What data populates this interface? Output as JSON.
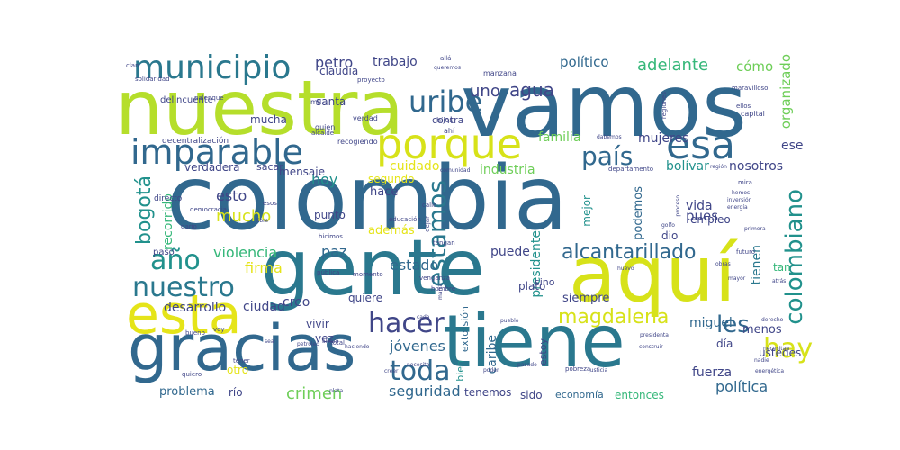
{
  "palette": {
    "navy": "#3b1c5a",
    "indigo": "#404688",
    "slate": "#31688e",
    "blue": "#2a788e",
    "teal": "#21918c",
    "green": "#35b779",
    "lime": "#6ece58",
    "yellowgreen": "#b5de2b",
    "yellow": "#e5e419"
  },
  "words": [
    {
      "text": "colombia",
      "color": "#31688e"
    },
    {
      "text": "vamos",
      "color": "#31688e"
    },
    {
      "text": "nuestra",
      "color": "#b5de2b"
    },
    {
      "text": "gente",
      "color": "#2a788e"
    },
    {
      "text": "aquí",
      "color": "#d7e219"
    },
    {
      "text": "tiene",
      "color": "#2a788e"
    },
    {
      "text": "gracias",
      "color": "#31688e"
    },
    {
      "text": "esta",
      "color": "#e5e419"
    },
    {
      "text": "porque",
      "color": "#d7e219"
    },
    {
      "text": "esa",
      "color": "#31688e"
    },
    {
      "text": "imparable",
      "color": "#31688e"
    },
    {
      "text": "municipio",
      "color": "#2a788e"
    },
    {
      "text": "uribe",
      "color": "#31688e"
    },
    {
      "text": "agua",
      "color": "#404688"
    },
    {
      "text": "uno",
      "color": "#404688"
    },
    {
      "text": "adelante",
      "color": "#35b779"
    },
    {
      "text": "político",
      "color": "#31688e"
    },
    {
      "text": "cómo",
      "color": "#6ece58"
    },
    {
      "text": "organizado",
      "color": "#6ece58"
    },
    {
      "text": "petro",
      "color": "#404688"
    },
    {
      "text": "trabajo",
      "color": "#404688"
    },
    {
      "text": "claudia",
      "color": "#404688"
    },
    {
      "text": "país",
      "color": "#31688e"
    },
    {
      "text": "estamos",
      "color": "#2a788e"
    },
    {
      "text": "colombiano",
      "color": "#21918c"
    },
    {
      "text": "hay",
      "color": "#d7e219"
    },
    {
      "text": "año",
      "color": "#21918c"
    },
    {
      "text": "nuestro",
      "color": "#2a788e"
    },
    {
      "text": "hacer",
      "color": "#404688"
    },
    {
      "text": "toda",
      "color": "#31688e"
    },
    {
      "text": "les",
      "color": "#31688e"
    },
    {
      "text": "alcantarillado",
      "color": "#31688e"
    },
    {
      "text": "magdalena",
      "color": "#d7e219"
    },
    {
      "text": "bogotá",
      "color": "#21918c"
    },
    {
      "text": "mucho",
      "color": "#d7e219"
    },
    {
      "text": "esto",
      "color": "#404688"
    },
    {
      "text": "hoy",
      "color": "#21918c"
    },
    {
      "text": "paz",
      "color": "#31688e"
    },
    {
      "text": "violencia",
      "color": "#35b779"
    },
    {
      "text": "firma",
      "color": "#e5e419"
    },
    {
      "text": "desarrollo",
      "color": "#404688"
    },
    {
      "text": "creo",
      "color": "#404688"
    },
    {
      "text": "ciudad",
      "color": "#404688"
    },
    {
      "text": "crimen",
      "color": "#6ece58"
    },
    {
      "text": "seguridad",
      "color": "#31688e"
    },
    {
      "text": "jóvenes",
      "color": "#31688e"
    },
    {
      "text": "caribe",
      "color": "#31688e"
    },
    {
      "text": "estado",
      "color": "#31688e"
    },
    {
      "text": "puede",
      "color": "#404688"
    },
    {
      "text": "política",
      "color": "#31688e"
    },
    {
      "text": "miguel",
      "color": "#31688e"
    },
    {
      "text": "menos",
      "color": "#404688"
    },
    {
      "text": "ese",
      "color": "#404688"
    },
    {
      "text": "pues",
      "color": "#404688"
    },
    {
      "text": "vida",
      "color": "#404688"
    },
    {
      "text": "bolívar",
      "color": "#21918c"
    },
    {
      "text": "familia",
      "color": "#6ece58"
    },
    {
      "text": "mujeres",
      "color": "#404688"
    },
    {
      "text": "nosotros",
      "color": "#404688"
    },
    {
      "text": "mucha",
      "color": "#404688"
    },
    {
      "text": "santa",
      "color": "#404688"
    },
    {
      "text": "verdadera",
      "color": "#404688"
    },
    {
      "text": "cuidado",
      "color": "#e5e419"
    },
    {
      "text": "industria",
      "color": "#6ece58"
    },
    {
      "text": "mensaje",
      "color": "#404688"
    },
    {
      "text": "segundo",
      "color": "#e5e419"
    },
    {
      "text": "hace",
      "color": "#404688"
    },
    {
      "text": "punto",
      "color": "#404688"
    },
    {
      "text": "además",
      "color": "#e5e419"
    },
    {
      "text": "recorrido",
      "color": "#35b779"
    },
    {
      "text": "presidente",
      "color": "#21918c"
    },
    {
      "text": "mejor",
      "color": "#21918c"
    },
    {
      "text": "podemos",
      "color": "#31688e"
    },
    {
      "text": "empleo",
      "color": "#404688"
    },
    {
      "text": "dio",
      "color": "#404688"
    },
    {
      "text": "tienen",
      "color": "#2a788e"
    },
    {
      "text": "tan",
      "color": "#35b779"
    },
    {
      "text": "día",
      "color": "#404688"
    },
    {
      "text": "ustedes",
      "color": "#404688"
    },
    {
      "text": "fuerza",
      "color": "#404688"
    },
    {
      "text": "entonces",
      "color": "#35b779"
    },
    {
      "text": "economía",
      "color": "#31688e"
    },
    {
      "text": "sido",
      "color": "#404688"
    },
    {
      "text": "tenemos",
      "color": "#404688"
    },
    {
      "text": "río",
      "color": "#404688"
    },
    {
      "text": "problema",
      "color": "#31688e"
    },
    {
      "text": "otro",
      "color": "#e5e419"
    },
    {
      "text": "quiere",
      "color": "#404688"
    },
    {
      "text": "siempre",
      "color": "#404688"
    },
    {
      "text": "plato",
      "color": "#404688"
    },
    {
      "text": "vez",
      "color": "#404688"
    },
    {
      "text": "vivir",
      "color": "#404688"
    },
    {
      "text": "extorsión",
      "color": "#31688e"
    },
    {
      "text": "bien",
      "color": "#21918c"
    },
    {
      "text": "estoy",
      "color": "#404688"
    },
    {
      "text": "sino",
      "color": "#404688"
    },
    {
      "text": "sacar",
      "color": "#404688"
    },
    {
      "text": "contra",
      "color": "#404688"
    },
    {
      "text": "delincuente",
      "color": "#404688"
    },
    {
      "text": "paso",
      "color": "#404688"
    },
    {
      "text": "directo",
      "color": "#404688"
    },
    {
      "text": "decentralización",
      "color": "#404688"
    },
    {
      "text": "recogiendo",
      "color": "#404688"
    },
    {
      "text": "mil",
      "color": "#404688"
    },
    {
      "text": "alcalde",
      "color": "#404688"
    },
    {
      "text": "verdad",
      "color": "#404688"
    },
    {
      "text": "quien",
      "color": "#404688"
    },
    {
      "text": "proyecto",
      "color": "#404688"
    },
    {
      "text": "manzana",
      "color": "#404688"
    },
    {
      "text": "allá",
      "color": "#404688"
    },
    {
      "text": "queremos",
      "color": "#404688"
    },
    {
      "text": "solidaridad",
      "color": "#404688"
    },
    {
      "text": "clan",
      "color": "#404688"
    },
    {
      "text": "palenque",
      "color": "#404688"
    },
    {
      "text": "hijos",
      "color": "#404688"
    },
    {
      "text": "ahí",
      "color": "#404688"
    },
    {
      "text": "dabemos",
      "color": "#404688"
    },
    {
      "text": "departamento",
      "color": "#404688"
    },
    {
      "text": "comunidad",
      "color": "#404688"
    },
    {
      "text": "regiones",
      "color": "#404688"
    },
    {
      "text": "capital",
      "color": "#404688"
    },
    {
      "text": "ellos",
      "color": "#404688"
    },
    {
      "text": "maravilloso",
      "color": "#404688"
    },
    {
      "text": "región",
      "color": "#404688"
    },
    {
      "text": "mira",
      "color": "#404688"
    },
    {
      "text": "hemos",
      "color": "#404688"
    },
    {
      "text": "inversión",
      "color": "#404688"
    },
    {
      "text": "energía",
      "color": "#404688"
    },
    {
      "text": "proceso",
      "color": "#404688"
    },
    {
      "text": "golfo",
      "color": "#404688"
    },
    {
      "text": "primera",
      "color": "#404688"
    },
    {
      "text": "educación",
      "color": "#404688"
    },
    {
      "text": "calle",
      "color": "#404688"
    },
    {
      "text": "dejar",
      "color": "#404688"
    },
    {
      "text": "democracia",
      "color": "#404688"
    },
    {
      "text": "esos",
      "color": "#404688"
    },
    {
      "text": "darío",
      "color": "#404688"
    },
    {
      "text": "libre",
      "color": "#404688"
    },
    {
      "text": "hicimos",
      "color": "#404688"
    },
    {
      "text": "tengan",
      "color": "#404688"
    },
    {
      "text": "pública",
      "color": "#404688"
    },
    {
      "text": "momento",
      "color": "#404688"
    },
    {
      "text": "total",
      "color": "#404688"
    },
    {
      "text": "venganza",
      "color": "#404688"
    },
    {
      "text": "hombre",
      "color": "#404688"
    },
    {
      "text": "futuro",
      "color": "#404688"
    },
    {
      "text": "obras",
      "color": "#404688"
    },
    {
      "text": "mayor",
      "color": "#404688"
    },
    {
      "text": "atrás",
      "color": "#404688"
    },
    {
      "text": "derecho",
      "color": "#404688"
    },
    {
      "text": "necesitan",
      "color": "#404688"
    },
    {
      "text": "nadie",
      "color": "#404688"
    },
    {
      "text": "energética",
      "color": "#404688"
    },
    {
      "text": "construir",
      "color": "#404688"
    },
    {
      "text": "presidenta",
      "color": "#404688"
    },
    {
      "text": "pasado",
      "color": "#404688"
    },
    {
      "text": "poder",
      "color": "#404688"
    },
    {
      "text": "pobreza",
      "color": "#404688"
    },
    {
      "text": "justicia",
      "color": "#404688"
    },
    {
      "text": "pueblo",
      "color": "#404688"
    },
    {
      "text": "necesita",
      "color": "#404688"
    },
    {
      "text": "álvaro",
      "color": "#404688"
    },
    {
      "text": "petróleo",
      "color": "#404688"
    },
    {
      "text": "sea",
      "color": "#404688"
    },
    {
      "text": "voy",
      "color": "#404688"
    },
    {
      "text": "bueno",
      "color": "#404688"
    },
    {
      "text": "tener",
      "color": "#404688"
    },
    {
      "text": "quiero",
      "color": "#404688"
    },
    {
      "text": "plata",
      "color": "#404688"
    },
    {
      "text": "haciendo",
      "color": "#404688"
    },
    {
      "text": "cada",
      "color": "#404688"
    },
    {
      "text": "huevo",
      "color": "#404688"
    },
    {
      "text": "marra",
      "color": "#404688"
    },
    {
      "text": "creer",
      "color": "#404688"
    }
  ]
}
